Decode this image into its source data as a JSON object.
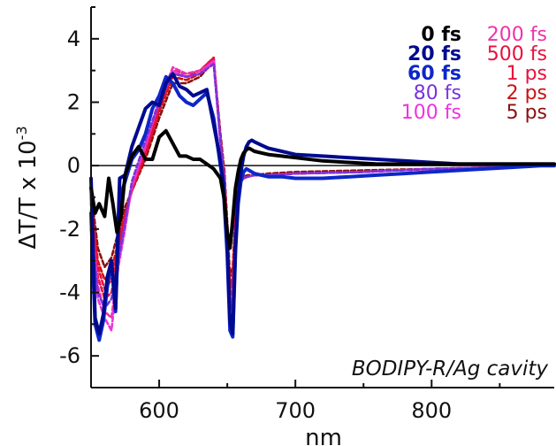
{
  "chart_data": {
    "type": "line",
    "xlabel": "nm",
    "ylabel": "ΔT/T x 10",
    "ylabel_exponent": "-3",
    "xlim": [
      550,
      890
    ],
    "ylim": [
      -7,
      5
    ],
    "x_ticks": [
      600,
      700,
      800
    ],
    "x_tick_labels": [
      "600",
      "700",
      "800"
    ],
    "y_ticks": [
      -6,
      -4,
      -2,
      0,
      2,
      4
    ],
    "y_tick_labels": [
      "-6",
      "-4",
      "-2",
      "0",
      "2",
      "4"
    ],
    "zero_line": true,
    "grid": false,
    "legend_position": "top-right",
    "annotation": "BODIPY-R/Ag cavity",
    "series": [
      {
        "name": "0 fs",
        "color": "#000000",
        "style": "solid",
        "bold": true,
        "x": [
          550,
          553,
          556,
          560,
          563,
          566,
          569,
          572,
          575,
          580,
          585,
          590,
          595,
          600,
          605,
          610,
          615,
          620,
          625,
          630,
          635,
          640,
          645,
          648,
          650,
          652,
          654,
          656,
          658,
          660,
          662,
          664,
          666,
          668,
          670,
          675,
          680,
          690,
          700,
          720,
          740,
          760,
          780,
          800,
          820,
          840,
          860,
          880,
          890
        ],
        "y": [
          -0.7,
          -1.5,
          -1.2,
          -1.6,
          -0.4,
          -1.2,
          -2.1,
          -1.6,
          -0.3,
          0.3,
          0.6,
          0.2,
          0.2,
          0.9,
          1.1,
          0.7,
          0.3,
          0.3,
          0.2,
          0.2,
          0.05,
          -0.1,
          -0.4,
          -1.1,
          -2.1,
          -2.6,
          -1.7,
          -0.7,
          -0.2,
          0.2,
          0.4,
          0.5,
          0.55,
          0.5,
          0.45,
          0.4,
          0.35,
          0.3,
          0.25,
          0.15,
          0.1,
          0.05,
          0.05,
          0.05,
          0.05,
          0.05,
          0.05,
          0.05,
          0.05
        ]
      },
      {
        "name": "20 fs",
        "color": "#000a8f",
        "style": "solid",
        "bold": true,
        "x": [
          550,
          553,
          556,
          559,
          562,
          565,
          568,
          571,
          575,
          580,
          585,
          590,
          595,
          600,
          605,
          610,
          615,
          620,
          625,
          630,
          635,
          640,
          644,
          647,
          650,
          652,
          654,
          656,
          658,
          660,
          662,
          664,
          666,
          668,
          670,
          675,
          680,
          690,
          700,
          720,
          740,
          760,
          780,
          800,
          820,
          840,
          860,
          880,
          890
        ],
        "y": [
          -0.4,
          -4.8,
          -5.3,
          -4.7,
          -3.5,
          -3.0,
          -4.5,
          -0.4,
          -0.3,
          0.6,
          1.2,
          1.8,
          2.0,
          1.9,
          2.6,
          2.9,
          2.5,
          2.4,
          2.2,
          2.3,
          2.4,
          1.3,
          0.4,
          -0.5,
          -2.5,
          -4.9,
          -5.3,
          -2.5,
          -1.0,
          -0.2,
          0.3,
          0.6,
          0.75,
          0.8,
          0.75,
          0.65,
          0.55,
          0.45,
          0.35,
          0.3,
          0.25,
          0.2,
          0.15,
          0.1,
          0.05,
          0.05,
          0.05,
          0.05,
          0.05
        ]
      },
      {
        "name": "60 fs",
        "color": "#0d27c8",
        "style": "solid",
        "bold": true,
        "x": [
          550,
          553,
          556,
          559,
          562,
          565,
          568,
          571,
          575,
          580,
          585,
          590,
          595,
          600,
          605,
          610,
          615,
          620,
          625,
          630,
          635,
          640,
          644,
          647,
          650,
          652,
          654,
          656,
          658,
          660,
          662,
          664,
          666,
          668,
          670,
          675,
          680,
          690,
          700,
          720,
          740,
          760,
          780,
          800,
          820,
          840,
          860,
          880,
          890
        ],
        "y": [
          -1.5,
          -5.0,
          -5.5,
          -4.9,
          -3.8,
          -3.0,
          -4.6,
          -1.0,
          -0.5,
          0.2,
          0.5,
          1.0,
          1.8,
          2.2,
          2.8,
          2.6,
          2.2,
          2.0,
          1.9,
          2.1,
          2.3,
          1.5,
          0.3,
          -0.6,
          -2.8,
          -5.2,
          -5.4,
          -2.7,
          -1.2,
          -0.5,
          -0.2,
          -0.1,
          -0.15,
          -0.2,
          -0.25,
          -0.3,
          -0.35,
          -0.35,
          -0.4,
          -0.4,
          -0.35,
          -0.3,
          -0.25,
          -0.2,
          -0.15,
          -0.1,
          -0.05,
          0.0,
          0.0
        ]
      },
      {
        "name": "80 fs",
        "color": "#7733dd",
        "style": "dashed",
        "bold": false,
        "x": [
          550,
          555,
          560,
          565,
          570,
          575,
          580,
          590,
          600,
          610,
          620,
          630,
          640,
          645,
          648,
          650,
          652,
          654,
          656,
          658,
          660,
          662,
          665,
          670,
          680,
          700,
          750,
          800,
          850,
          890
        ],
        "y": [
          -2.0,
          -4.0,
          -4.5,
          -4.2,
          -3.0,
          -1.8,
          -0.5,
          0.8,
          2.0,
          2.9,
          2.8,
          2.9,
          3.2,
          0.8,
          -0.5,
          -2.5,
          -4.5,
          -4.2,
          -2.0,
          -0.9,
          -0.5,
          -0.4,
          -0.35,
          -0.3,
          -0.3,
          -0.25,
          -0.2,
          -0.1,
          -0.05,
          0.0
        ]
      },
      {
        "name": "100 fs",
        "color": "#ee33dd",
        "style": "dashed",
        "bold": false,
        "x": [
          550,
          555,
          560,
          565,
          570,
          575,
          580,
          590,
          600,
          610,
          620,
          630,
          640,
          645,
          648,
          650,
          652,
          654,
          656,
          658,
          660,
          662,
          665,
          670,
          680,
          700,
          750,
          800,
          850,
          890
        ],
        "y": [
          -1.8,
          -4.2,
          -4.8,
          -5.2,
          -3.2,
          -2.0,
          -0.6,
          0.7,
          2.1,
          3.0,
          2.8,
          2.9,
          3.3,
          0.7,
          -0.6,
          -2.6,
          -4.6,
          -4.3,
          -2.1,
          -1.0,
          -0.5,
          -0.4,
          -0.35,
          -0.3,
          -0.3,
          -0.25,
          -0.2,
          -0.1,
          -0.05,
          0.0
        ]
      },
      {
        "name": "200 fs",
        "color": "#ee33aa",
        "style": "dashed",
        "bold": false,
        "x": [
          550,
          555,
          560,
          565,
          570,
          575,
          580,
          590,
          600,
          610,
          620,
          630,
          640,
          645,
          648,
          650,
          652,
          654,
          656,
          658,
          660,
          662,
          665,
          670,
          680,
          700,
          750,
          800,
          850,
          890
        ],
        "y": [
          -1.6,
          -3.8,
          -4.6,
          -4.8,
          -3.1,
          -1.9,
          -0.7,
          0.6,
          2.0,
          3.1,
          2.9,
          3.0,
          3.3,
          0.7,
          -0.5,
          -2.4,
          -4.4,
          -4.1,
          -2.0,
          -0.9,
          -0.5,
          -0.4,
          -0.35,
          -0.3,
          -0.3,
          -0.25,
          -0.2,
          -0.1,
          -0.05,
          0.0
        ]
      },
      {
        "name": "500 fs",
        "color": "#e8113c",
        "style": "dashed",
        "bold": false,
        "x": [
          550,
          555,
          560,
          565,
          570,
          575,
          580,
          590,
          600,
          610,
          620,
          630,
          640,
          645,
          648,
          650,
          652,
          654,
          656,
          658,
          660,
          662,
          665,
          670,
          680,
          700,
          750,
          800,
          850,
          890
        ],
        "y": [
          -1.4,
          -3.5,
          -4.2,
          -4.0,
          -2.8,
          -1.7,
          -0.7,
          0.5,
          1.9,
          3.0,
          2.9,
          3.0,
          3.4,
          0.8,
          -0.4,
          -2.2,
          -4.2,
          -3.9,
          -1.9,
          -0.9,
          -0.5,
          -0.4,
          -0.35,
          -0.3,
          -0.3,
          -0.25,
          -0.2,
          -0.1,
          -0.05,
          0.0
        ]
      },
      {
        "name": "1 ps",
        "color": "#e8113c",
        "style": "dashed",
        "bold": false,
        "x": [
          550,
          555,
          560,
          565,
          570,
          575,
          580,
          590,
          600,
          610,
          620,
          630,
          640,
          645,
          648,
          650,
          652,
          654,
          656,
          658,
          660,
          662,
          665,
          670,
          680,
          700,
          750,
          800,
          850,
          890
        ],
        "y": [
          -1.2,
          -3.2,
          -3.9,
          -3.6,
          -2.6,
          -1.6,
          -0.8,
          0.4,
          1.8,
          2.9,
          2.8,
          3.0,
          3.4,
          0.8,
          -0.4,
          -2.1,
          -4.0,
          -3.7,
          -1.8,
          -0.9,
          -0.5,
          -0.4,
          -0.35,
          -0.3,
          -0.3,
          -0.25,
          -0.2,
          -0.1,
          -0.05,
          0.0
        ]
      },
      {
        "name": "2 ps",
        "color": "#cc1111",
        "style": "dashed",
        "bold": false,
        "x": [
          550,
          555,
          560,
          565,
          570,
          575,
          580,
          590,
          600,
          610,
          620,
          630,
          640,
          645,
          648,
          650,
          652,
          654,
          656,
          658,
          660,
          662,
          665,
          670,
          680,
          700,
          750,
          800,
          850,
          890
        ],
        "y": [
          -1.0,
          -3.0,
          -3.6,
          -3.3,
          -2.4,
          -1.5,
          -0.8,
          0.3,
          1.7,
          2.8,
          2.7,
          2.9,
          3.4,
          0.9,
          -0.3,
          -2.0,
          -3.8,
          -3.5,
          -1.7,
          -0.8,
          -0.5,
          -0.4,
          -0.35,
          -0.3,
          -0.3,
          -0.25,
          -0.2,
          -0.1,
          -0.05,
          0.0
        ]
      },
      {
        "name": "5 ps",
        "color": "#8b0f0f",
        "style": "dashed",
        "bold": false,
        "x": [
          550,
          555,
          560,
          565,
          570,
          575,
          580,
          590,
          600,
          610,
          620,
          630,
          640,
          645,
          648,
          650,
          652,
          654,
          656,
          658,
          660,
          662,
          665,
          670,
          680,
          700,
          750,
          800,
          850,
          890
        ],
        "y": [
          -0.8,
          -2.6,
          -3.2,
          -2.9,
          -2.1,
          -1.3,
          -0.8,
          0.2,
          1.5,
          2.6,
          2.6,
          2.8,
          3.3,
          1.0,
          -0.2,
          -1.8,
          -3.5,
          -3.2,
          -1.5,
          -0.7,
          -0.45,
          -0.35,
          -0.3,
          -0.3,
          -0.25,
          -0.2,
          -0.15,
          -0.1,
          -0.05,
          0.0
        ]
      }
    ]
  }
}
